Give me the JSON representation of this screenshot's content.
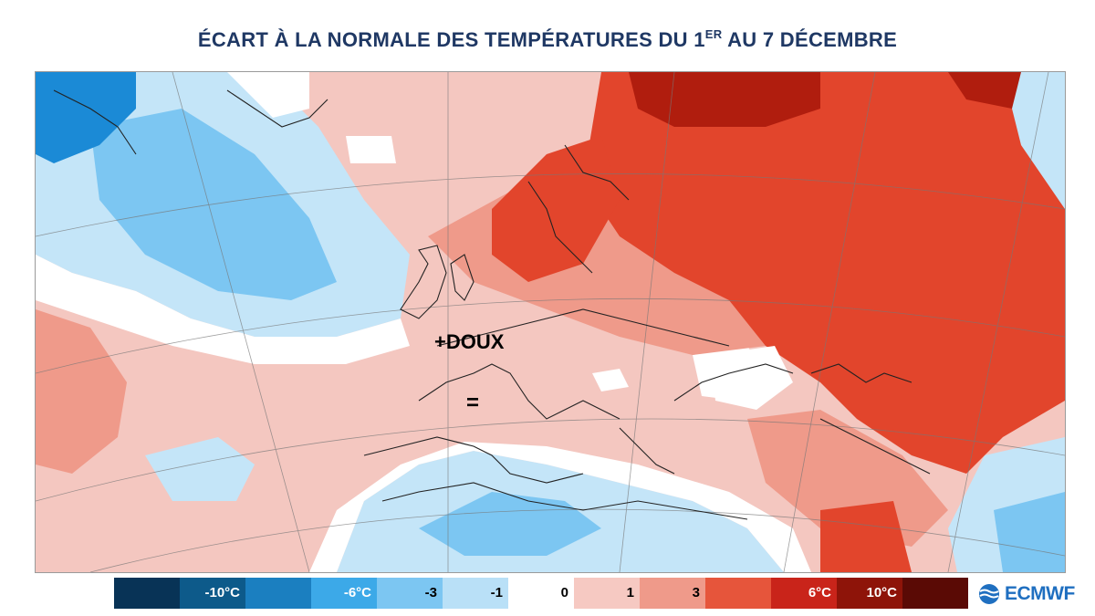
{
  "title": {
    "part1": "ÉCART À LA NORMALE DES TEMPÉRATURES DU 1",
    "sup": "ER",
    "part2": " AU 7 DÉCEMBRE"
  },
  "annotations": {
    "doux": "+DOUX",
    "equal": "="
  },
  "colorbar": {
    "segments": [
      {
        "color": "#083356",
        "label": "",
        "text_color": "#ffffff"
      },
      {
        "color": "#0d5a8a",
        "label": "-10°C",
        "text_color": "#ffffff"
      },
      {
        "color": "#1b7fc0",
        "label": "",
        "text_color": "#ffffff"
      },
      {
        "color": "#3ca9e8",
        "label": "-6°C",
        "text_color": "#ffffff"
      },
      {
        "color": "#7cc6f2",
        "label": "-3",
        "text_color": "#000000"
      },
      {
        "color": "#b9e0f7",
        "label": "-1",
        "text_color": "#000000"
      },
      {
        "color": "#ffffff",
        "label": "0",
        "text_color": "#000000"
      },
      {
        "color": "#f6c9c2",
        "label": "1",
        "text_color": "#000000"
      },
      {
        "color": "#ef9a8a",
        "label": "3",
        "text_color": "#000000"
      },
      {
        "color": "#e6553b",
        "label": "",
        "text_color": "#000000"
      },
      {
        "color": "#c9241a",
        "label": "6°C",
        "text_color": "#ffffff"
      },
      {
        "color": "#8e1409",
        "label": "10°C",
        "text_color": "#ffffff"
      },
      {
        "color": "#5a0a05",
        "label": "",
        "text_color": "#ffffff"
      }
    ]
  },
  "logo": {
    "text": "ECMWF",
    "color": "#1f6fc0"
  },
  "map_colors": {
    "very_cold": "#1b8ad6",
    "cold": "#7cc6f2",
    "cool": "#c4e5f8",
    "neutral": "#ffffff",
    "mild": "#f4c7c0",
    "warm": "#ef9a8a",
    "hot": "#e2452c",
    "very_hot": "#b01d0e"
  }
}
